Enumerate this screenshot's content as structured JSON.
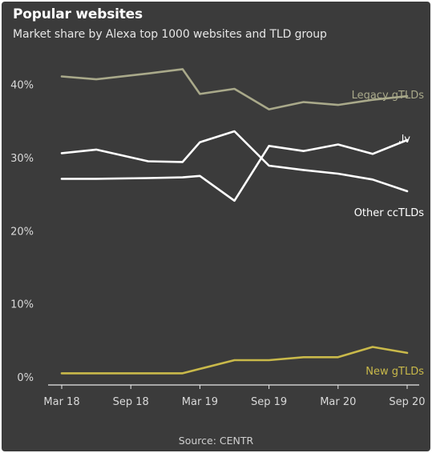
{
  "header": {
    "title": "Popular websites",
    "subtitle": "Market share by Alexa top 1000 websites and TLD group"
  },
  "footer": {
    "source": "Source: CENTR"
  },
  "chart_data": {
    "type": "line",
    "title": "Popular websites",
    "subtitle": "Market share by Alexa top 1000 websites and TLD group",
    "xlabel": "",
    "ylabel": "",
    "x": [
      "Mar 18",
      "Jun 18",
      "Sep 18",
      "Dec 18",
      "Mar 19",
      "Jun 19",
      "Sep 19",
      "Dec 19",
      "Mar 20",
      "Jun 20",
      "Sep 20"
    ],
    "x_tick_labels": [
      "Mar 18",
      "Sep 18",
      "Mar 19",
      "Sep 19",
      "Mar 20",
      "Sep 20"
    ],
    "x_tick_index": [
      0,
      2,
      4,
      6,
      8,
      10
    ],
    "ylim": [
      0,
      44
    ],
    "y_ticks": [
      0,
      10,
      20,
      30,
      40
    ],
    "y_tick_labels": [
      "0%",
      "10%",
      "20%",
      "30%",
      "40%"
    ],
    "grid": false,
    "series": [
      {
        "name": "Legacy gTLDs",
        "color": "#a9a98a",
        "x_index": [
          0,
          1,
          2.5,
          3.5,
          4,
          5,
          6,
          7,
          8,
          9,
          10
        ],
        "values": [
          41.1,
          40.7,
          41.5,
          42.1,
          38.7,
          39.4,
          36.6,
          37.6,
          37.2,
          37.9,
          38.4
        ]
      },
      {
        "name": ".lv",
        "color": "#ffffff",
        "x_index": [
          0,
          1,
          2.5,
          3.5,
          4,
          5,
          6,
          7,
          8,
          9,
          10
        ],
        "values": [
          27.1,
          27.1,
          27.2,
          27.3,
          27.5,
          24.1,
          31.6,
          30.9,
          31.8,
          30.5,
          32.4
        ]
      },
      {
        "name": "Other ccTLDs",
        "color": "#ffffff",
        "x_index": [
          0,
          1,
          2.5,
          3.5,
          4,
          5,
          6,
          7,
          8,
          9,
          10
        ],
        "values": [
          30.6,
          31.1,
          29.5,
          29.4,
          32.1,
          33.6,
          28.9,
          28.3,
          27.8,
          27.0,
          25.4
        ]
      },
      {
        "name": "New gTLDs",
        "color": "#c9b94a",
        "x_index": [
          0,
          1,
          2.5,
          3.5,
          4,
          5,
          6,
          7,
          8,
          9,
          10
        ],
        "values": [
          0.5,
          0.5,
          0.5,
          0.5,
          1.1,
          2.3,
          2.3,
          2.7,
          2.7,
          4.1,
          3.3
        ]
      }
    ],
    "labels": [
      {
        "series": "Legacy gTLDs",
        "text": "Legacy gTLDs",
        "color": "#a9a98a"
      },
      {
        "series": ".lv",
        "text": ".lv",
        "color": "#ffffff"
      },
      {
        "series": "Other ccTLDs",
        "text": "Other ccTLDs",
        "color": "#ffffff"
      },
      {
        "series": "New gTLDs",
        "text": "New gTLDs",
        "color": "#c9b94a"
      }
    ]
  }
}
